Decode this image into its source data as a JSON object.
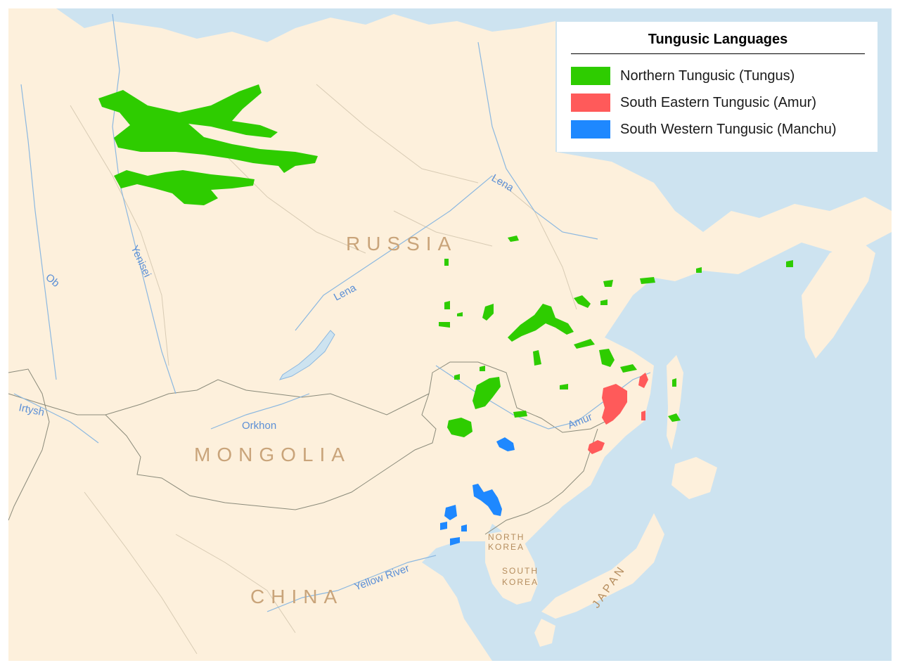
{
  "legend": {
    "title": "Tungusic Languages",
    "items": [
      {
        "label": "Northern Tungusic (Tungus)",
        "color": "#2ecc00"
      },
      {
        "label": "South Eastern Tungusic (Amur)",
        "color": "#ff5a5a"
      },
      {
        "label": "South Western Tungusic (Manchu)",
        "color": "#1e88ff"
      }
    ]
  },
  "countries": {
    "russia": "RUSSIA",
    "mongolia": "MONGOLIA",
    "china": "CHINA",
    "north_korea_line1": "NORTH",
    "north_korea_line2": "KOREA",
    "south_korea_line1": "SOUTH",
    "south_korea_line2": "KOREA",
    "japan": "JAPAN"
  },
  "rivers": {
    "lena_north": "Lena",
    "lena_south": "Lena",
    "yenisei": "Yenisei",
    "ob": "Ob",
    "irtysh": "Irtysh",
    "orkhon": "Orkhon",
    "amur": "Amur",
    "yellow_river": "Yellow River"
  },
  "colors": {
    "land": "#fdf0dc",
    "sea": "#cde3f0",
    "northern": "#2ecc00",
    "south_eastern": "#ff5a5a",
    "south_western": "#1e88ff"
  }
}
